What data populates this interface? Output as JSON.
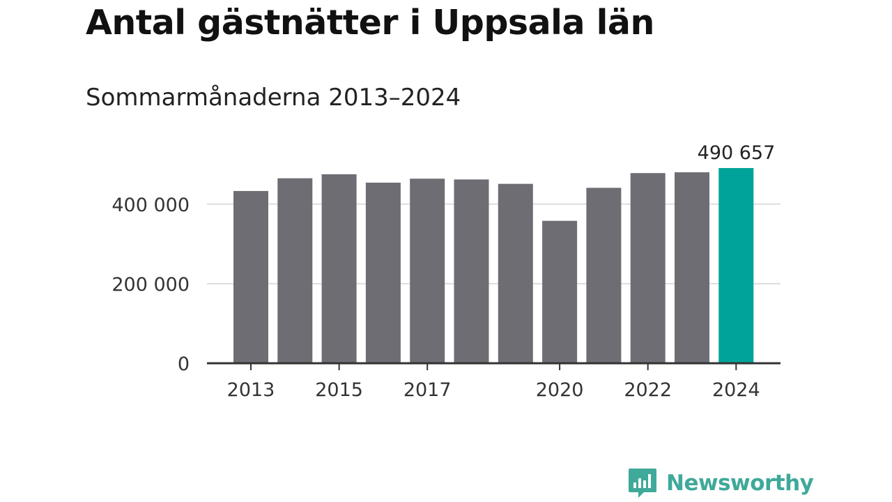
{
  "chart_data": {
    "type": "bar",
    "title": "Antal gästnätter i Uppsala län",
    "subtitle": "Sommarmånaderna 2013–2024",
    "categories": [
      "2013",
      "2014",
      "2015",
      "2016",
      "2017",
      "2018",
      "2019",
      "2020",
      "2021",
      "2022",
      "2023",
      "2024"
    ],
    "x_tick_labels": [
      "2013",
      "2015",
      "2017",
      "2020",
      "2022",
      "2024"
    ],
    "values": [
      433000,
      465000,
      475000,
      454000,
      464000,
      462000,
      451000,
      358000,
      441000,
      478000,
      480000,
      490657
    ],
    "highlight_index": 11,
    "highlight_label": "490 657",
    "y_ticks": [
      0,
      200000,
      400000
    ],
    "y_tick_labels": [
      "0",
      "200 000",
      "400 000"
    ],
    "ylim": [
      0,
      510000
    ],
    "grid": true,
    "colors": {
      "bar": "#6e6d73",
      "highlight": "#00a399",
      "grid": "#dddddd",
      "axis": "#333333"
    }
  },
  "brand": {
    "name": "Newsworthy",
    "icon": "newsworthy-logo-icon",
    "color": "#3fa99a"
  }
}
